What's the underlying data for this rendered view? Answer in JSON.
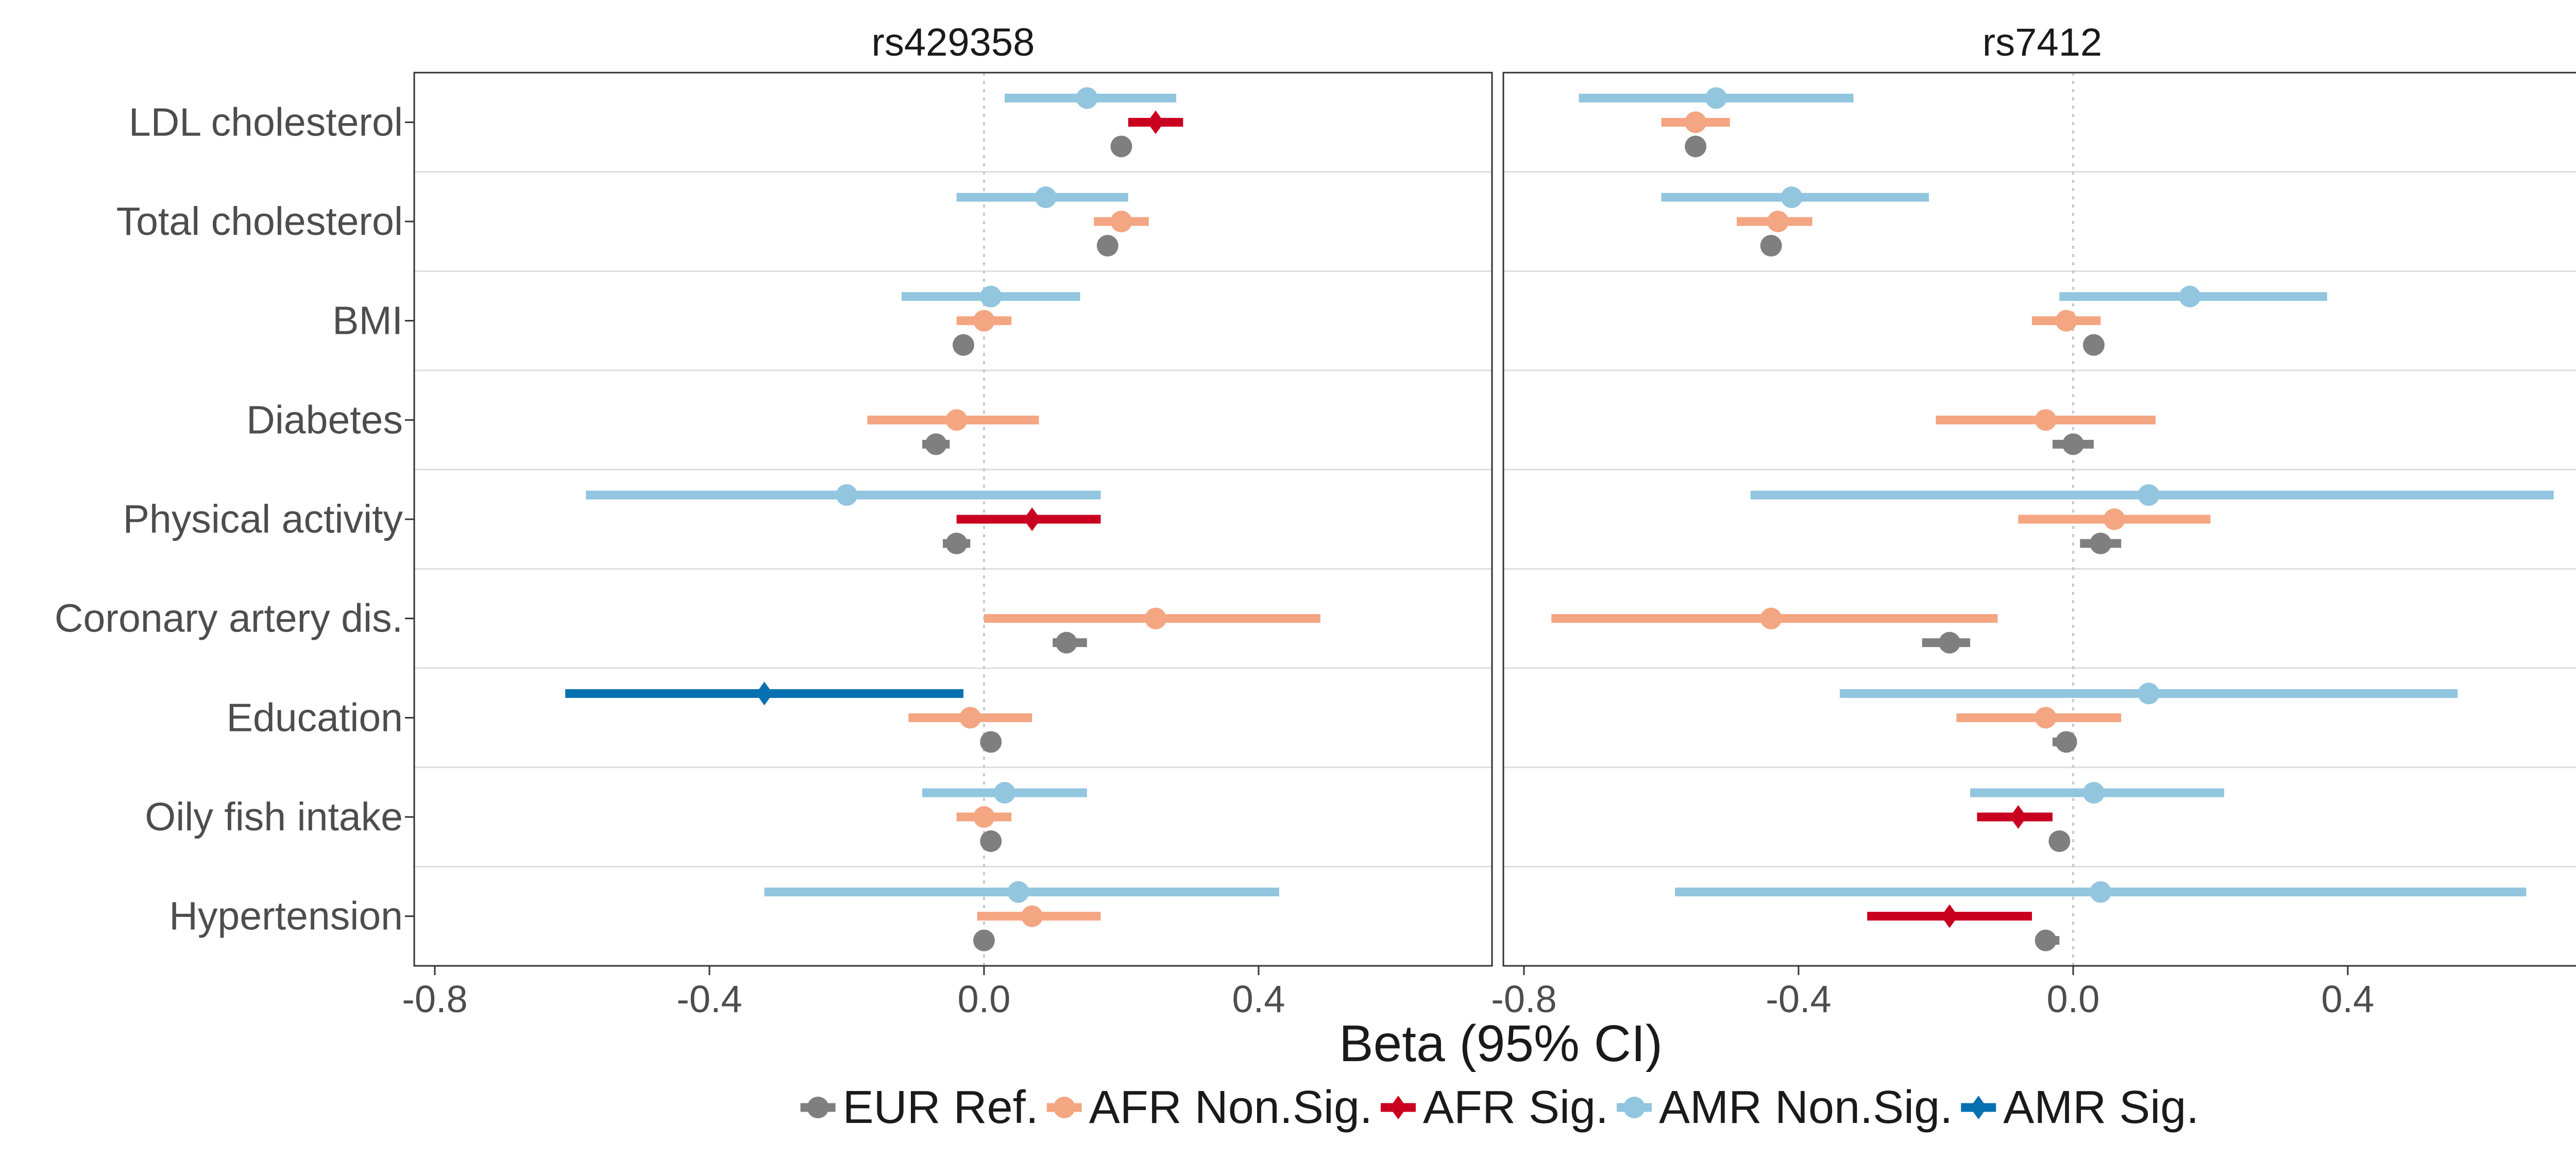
{
  "chart_data": {
    "type": "forest",
    "xlabel": "Beta (95% CI)",
    "xlim": [
      -0.83,
      0.74
    ],
    "xticks": [
      -0.8,
      -0.4,
      0.0,
      0.4
    ],
    "xtick_labels": [
      "-0.8",
      "-0.4",
      "0.0",
      "0.4"
    ],
    "grid": "horizontal separators between traits",
    "reference_line": 0,
    "legend_position": "bottom",
    "traits": [
      "LDL cholesterol",
      "Total cholesterol",
      "BMI",
      "Diabetes",
      "Physical activity",
      "Coronary artery dis.",
      "Education",
      "Oily fish intake",
      "Hypertension"
    ],
    "groups": [
      {
        "key": "EUR",
        "label": "EUR Ref.",
        "color": "#7f7f7f",
        "shape": "circle"
      },
      {
        "key": "AFR_NS",
        "label": "AFR Non.Sig.",
        "color": "#f4a582",
        "shape": "circle"
      },
      {
        "key": "AFR_S",
        "label": "AFR Sig.",
        "color": "#ca0020",
        "shape": "diamond"
      },
      {
        "key": "AMR_NS",
        "label": "AMR Non.Sig.",
        "color": "#92c5de",
        "shape": "circle"
      },
      {
        "key": "AMR_S",
        "label": "AMR Sig.",
        "color": "#0571b0",
        "shape": "diamond"
      }
    ],
    "panels": [
      {
        "title": "rs429358",
        "estimates": [
          {
            "trait": "LDL cholesterol",
            "ancestry": "AMR",
            "group": "AMR_NS",
            "beta": 0.15,
            "lo": 0.03,
            "hi": 0.28
          },
          {
            "trait": "LDL cholesterol",
            "ancestry": "AFR",
            "group": "AFR_S",
            "beta": 0.25,
            "lo": 0.21,
            "hi": 0.29
          },
          {
            "trait": "LDL cholesterol",
            "ancestry": "EUR",
            "group": "EUR",
            "beta": 0.2,
            "lo": 0.19,
            "hi": 0.21
          },
          {
            "trait": "Total cholesterol",
            "ancestry": "AMR",
            "group": "AMR_NS",
            "beta": 0.09,
            "lo": -0.04,
            "hi": 0.21
          },
          {
            "trait": "Total cholesterol",
            "ancestry": "AFR",
            "group": "AFR_NS",
            "beta": 0.2,
            "lo": 0.16,
            "hi": 0.24
          },
          {
            "trait": "Total cholesterol",
            "ancestry": "EUR",
            "group": "EUR",
            "beta": 0.18,
            "lo": 0.17,
            "hi": 0.19
          },
          {
            "trait": "BMI",
            "ancestry": "AMR",
            "group": "AMR_NS",
            "beta": 0.01,
            "lo": -0.12,
            "hi": 0.14
          },
          {
            "trait": "BMI",
            "ancestry": "AFR",
            "group": "AFR_NS",
            "beta": 0.0,
            "lo": -0.04,
            "hi": 0.04
          },
          {
            "trait": "BMI",
            "ancestry": "EUR",
            "group": "EUR",
            "beta": -0.03,
            "lo": -0.04,
            "hi": -0.02
          },
          {
            "trait": "Diabetes",
            "ancestry": "AFR",
            "group": "AFR_NS",
            "beta": -0.04,
            "lo": -0.17,
            "hi": 0.08
          },
          {
            "trait": "Diabetes",
            "ancestry": "EUR",
            "group": "EUR",
            "beta": -0.07,
            "lo": -0.09,
            "hi": -0.05
          },
          {
            "trait": "Physical activity",
            "ancestry": "AMR",
            "group": "AMR_NS",
            "beta": -0.2,
            "lo": -0.58,
            "hi": 0.17
          },
          {
            "trait": "Physical activity",
            "ancestry": "AFR",
            "group": "AFR_S",
            "beta": 0.07,
            "lo": -0.04,
            "hi": 0.17
          },
          {
            "trait": "Physical activity",
            "ancestry": "EUR",
            "group": "EUR",
            "beta": -0.04,
            "lo": -0.06,
            "hi": -0.02
          },
          {
            "trait": "Coronary artery dis.",
            "ancestry": "AFR",
            "group": "AFR_NS",
            "beta": 0.25,
            "lo": 0.0,
            "hi": 0.49
          },
          {
            "trait": "Coronary artery dis.",
            "ancestry": "EUR",
            "group": "EUR",
            "beta": 0.12,
            "lo": 0.1,
            "hi": 0.15
          },
          {
            "trait": "Education",
            "ancestry": "AMR",
            "group": "AMR_S",
            "beta": -0.32,
            "lo": -0.61,
            "hi": -0.03
          },
          {
            "trait": "Education",
            "ancestry": "AFR",
            "group": "AFR_NS",
            "beta": -0.02,
            "lo": -0.11,
            "hi": 0.07
          },
          {
            "trait": "Education",
            "ancestry": "EUR",
            "group": "EUR",
            "beta": 0.01,
            "lo": 0.0,
            "hi": 0.02
          },
          {
            "trait": "Oily fish intake",
            "ancestry": "AMR",
            "group": "AMR_NS",
            "beta": 0.03,
            "lo": -0.09,
            "hi": 0.15
          },
          {
            "trait": "Oily fish intake",
            "ancestry": "AFR",
            "group": "AFR_NS",
            "beta": 0.0,
            "lo": -0.04,
            "hi": 0.04
          },
          {
            "trait": "Oily fish intake",
            "ancestry": "EUR",
            "group": "EUR",
            "beta": 0.01,
            "lo": 0.0,
            "hi": 0.02
          },
          {
            "trait": "Hypertension",
            "ancestry": "AMR",
            "group": "AMR_NS",
            "beta": 0.05,
            "lo": -0.32,
            "hi": 0.43
          },
          {
            "trait": "Hypertension",
            "ancestry": "AFR",
            "group": "AFR_NS",
            "beta": 0.07,
            "lo": -0.01,
            "hi": 0.17
          },
          {
            "trait": "Hypertension",
            "ancestry": "EUR",
            "group": "EUR",
            "beta": 0.0,
            "lo": -0.01,
            "hi": 0.01
          }
        ]
      },
      {
        "title": "rs7412",
        "estimates": [
          {
            "trait": "LDL cholesterol",
            "ancestry": "AMR",
            "group": "AMR_NS",
            "beta": -0.52,
            "lo": -0.72,
            "hi": -0.32
          },
          {
            "trait": "LDL cholesterol",
            "ancestry": "AFR",
            "group": "AFR_NS",
            "beta": -0.55,
            "lo": -0.6,
            "hi": -0.5
          },
          {
            "trait": "LDL cholesterol",
            "ancestry": "EUR",
            "group": "EUR",
            "beta": -0.55,
            "lo": -0.56,
            "hi": -0.54
          },
          {
            "trait": "Total cholesterol",
            "ancestry": "AMR",
            "group": "AMR_NS",
            "beta": -0.41,
            "lo": -0.6,
            "hi": -0.21
          },
          {
            "trait": "Total cholesterol",
            "ancestry": "AFR",
            "group": "AFR_NS",
            "beta": -0.43,
            "lo": -0.49,
            "hi": -0.38
          },
          {
            "trait": "Total cholesterol",
            "ancestry": "EUR",
            "group": "EUR",
            "beta": -0.44,
            "lo": -0.45,
            "hi": -0.43
          },
          {
            "trait": "BMI",
            "ancestry": "AMR",
            "group": "AMR_NS",
            "beta": 0.17,
            "lo": -0.02,
            "hi": 0.37
          },
          {
            "trait": "BMI",
            "ancestry": "AFR",
            "group": "AFR_NS",
            "beta": -0.01,
            "lo": -0.06,
            "hi": 0.04
          },
          {
            "trait": "BMI",
            "ancestry": "EUR",
            "group": "EUR",
            "beta": 0.03,
            "lo": 0.02,
            "hi": 0.04
          },
          {
            "trait": "Diabetes",
            "ancestry": "AFR",
            "group": "AFR_NS",
            "beta": -0.04,
            "lo": -0.2,
            "hi": 0.12
          },
          {
            "trait": "Diabetes",
            "ancestry": "EUR",
            "group": "EUR",
            "beta": 0.0,
            "lo": -0.03,
            "hi": 0.03
          },
          {
            "trait": "Physical activity",
            "ancestry": "AMR",
            "group": "AMR_NS",
            "beta": 0.11,
            "lo": -0.47,
            "hi": 0.7
          },
          {
            "trait": "Physical activity",
            "ancestry": "AFR",
            "group": "AFR_NS",
            "beta": 0.06,
            "lo": -0.08,
            "hi": 0.2
          },
          {
            "trait": "Physical activity",
            "ancestry": "EUR",
            "group": "EUR",
            "beta": 0.04,
            "lo": 0.01,
            "hi": 0.07
          },
          {
            "trait": "Coronary artery dis.",
            "ancestry": "AFR",
            "group": "AFR_NS",
            "beta": -0.44,
            "lo": -0.76,
            "hi": -0.11
          },
          {
            "trait": "Coronary artery dis.",
            "ancestry": "EUR",
            "group": "EUR",
            "beta": -0.18,
            "lo": -0.22,
            "hi": -0.15
          },
          {
            "trait": "Education",
            "ancestry": "AMR",
            "group": "AMR_NS",
            "beta": 0.11,
            "lo": -0.34,
            "hi": 0.56
          },
          {
            "trait": "Education",
            "ancestry": "AFR",
            "group": "AFR_NS",
            "beta": -0.04,
            "lo": -0.17,
            "hi": 0.07
          },
          {
            "trait": "Education",
            "ancestry": "EUR",
            "group": "EUR",
            "beta": -0.01,
            "lo": -0.03,
            "hi": 0.0
          },
          {
            "trait": "Oily fish intake",
            "ancestry": "AMR",
            "group": "AMR_NS",
            "beta": 0.03,
            "lo": -0.15,
            "hi": 0.22
          },
          {
            "trait": "Oily fish intake",
            "ancestry": "AFR",
            "group": "AFR_S",
            "beta": -0.08,
            "lo": -0.14,
            "hi": -0.03
          },
          {
            "trait": "Oily fish intake",
            "ancestry": "EUR",
            "group": "EUR",
            "beta": -0.02,
            "lo": -0.03,
            "hi": -0.01
          },
          {
            "trait": "Hypertension",
            "ancestry": "AMR",
            "group": "AMR_NS",
            "beta": 0.04,
            "lo": -0.58,
            "hi": 0.66
          },
          {
            "trait": "Hypertension",
            "ancestry": "AFR",
            "group": "AFR_S",
            "beta": -0.18,
            "lo": -0.3,
            "hi": -0.06
          },
          {
            "trait": "Hypertension",
            "ancestry": "EUR",
            "group": "EUR",
            "beta": -0.04,
            "lo": -0.05,
            "hi": -0.02
          }
        ]
      }
    ]
  }
}
